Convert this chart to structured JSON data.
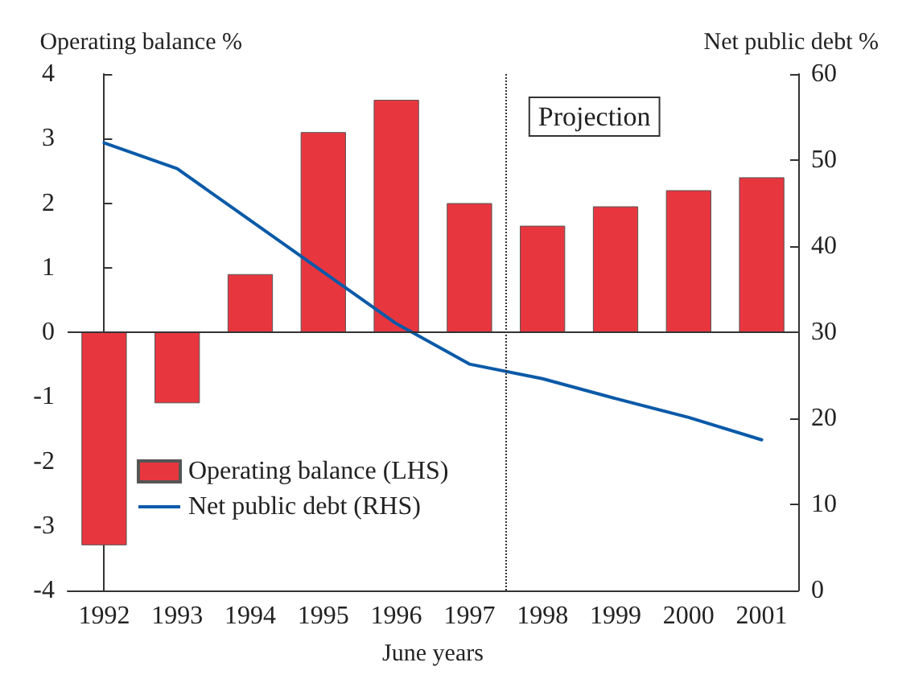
{
  "chart_data": {
    "type": "bar",
    "xlabel": "June years",
    "ylabel": "Operating balance %",
    "y2label": "Net public debt %",
    "categories": [
      "1992",
      "1993",
      "1994",
      "1995",
      "1996",
      "1997",
      "1998",
      "1999",
      "2000",
      "2001"
    ],
    "series": [
      {
        "name": "Operating balance (LHS)",
        "color": "#e8363f",
        "values": [
          -3.3,
          -1.1,
          0.9,
          3.1,
          3.6,
          2.0,
          1.65,
          1.95,
          2.2,
          2.4
        ]
      },
      {
        "name": "Net public debt (RHS)",
        "type": "line",
        "axis": "y2",
        "color": "#0a5aa8",
        "values": [
          52,
          49,
          43,
          37,
          31,
          26.3,
          24.6,
          22.3,
          20.1,
          17.5
        ]
      }
    ],
    "ylim": [
      -4,
      4
    ],
    "yticks": [
      -4,
      -3,
      -2,
      -1,
      0,
      1,
      2,
      3,
      4
    ],
    "y2lim": [
      0,
      60
    ],
    "y2ticks": [
      0,
      10,
      20,
      30,
      40,
      50,
      60
    ],
    "ref_lines": [
      {
        "axis": "x",
        "value": "1998",
        "label": "Projection",
        "line_style": "dotted"
      }
    ],
    "legend": "bottom left",
    "grid": false,
    "marker": "none",
    "line_style": "solid"
  }
}
